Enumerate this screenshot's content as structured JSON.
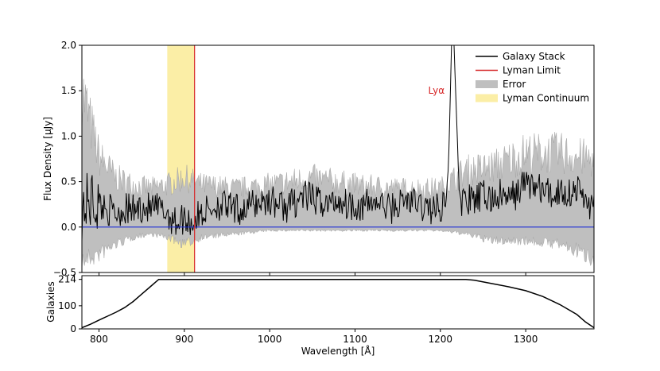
{
  "chart_data": [
    {
      "type": "line",
      "xlim": [
        780,
        1380
      ],
      "ylim": [
        -0.5,
        2.0
      ],
      "ylabel": "Flux Density [μJy]",
      "xlabel": "",
      "yticks": [
        -0.5,
        0.0,
        0.5,
        1.0,
        1.5,
        2.0
      ],
      "ytick_labels": [
        "−0.5",
        "0.0",
        "0.5",
        "1.0",
        "1.5",
        "2.0"
      ],
      "grid": false,
      "legend_position": "top-right",
      "legend": [
        {
          "label": "Galaxy Stack",
          "kind": "line",
          "color": "#000000"
        },
        {
          "label": "Lyman Limit",
          "kind": "line",
          "color": "#d62728"
        },
        {
          "label": "Error",
          "kind": "patch",
          "color": "#bfbfbf"
        },
        {
          "label": "Lyman Continuum",
          "kind": "patch",
          "color": "#fbeea6"
        }
      ],
      "lyman_limit": {
        "x": 912,
        "color": "#d62728"
      },
      "lyman_continuum": {
        "x_range": [
          880,
          912
        ],
        "color": "#fbeea6"
      },
      "zero_line": {
        "y": 0.0,
        "color": "#1f2ed6"
      },
      "annotations": [
        {
          "text": "Lyα",
          "x": 1198,
          "y": 1.5,
          "color": "#d62728"
        }
      ],
      "series": [
        {
          "name": "Galaxy Stack",
          "color": "#000000",
          "x": [
            780,
            790,
            800,
            810,
            820,
            830,
            840,
            850,
            860,
            870,
            880,
            890,
            900,
            910,
            920,
            930,
            940,
            950,
            960,
            970,
            980,
            990,
            1000,
            1010,
            1020,
            1030,
            1040,
            1050,
            1060,
            1070,
            1080,
            1090,
            1100,
            1110,
            1120,
            1130,
            1140,
            1150,
            1160,
            1170,
            1180,
            1190,
            1200,
            1205,
            1210,
            1213,
            1216,
            1219,
            1222,
            1225,
            1230,
            1240,
            1250,
            1260,
            1270,
            1280,
            1290,
            1300,
            1310,
            1320,
            1330,
            1340,
            1350,
            1360,
            1370,
            1380
          ],
          "y": [
            0.2,
            0.3,
            0.25,
            0.2,
            0.15,
            0.2,
            0.18,
            0.22,
            0.2,
            0.2,
            0.15,
            0.05,
            0.1,
            0.05,
            0.15,
            0.2,
            0.25,
            0.22,
            0.18,
            0.2,
            0.25,
            0.28,
            0.3,
            0.25,
            0.22,
            0.28,
            0.35,
            0.3,
            0.28,
            0.25,
            0.3,
            0.26,
            0.25,
            0.22,
            0.28,
            0.25,
            0.2,
            0.24,
            0.3,
            0.26,
            0.22,
            0.2,
            0.2,
            0.3,
            0.8,
            2.0,
            2.0,
            1.2,
            0.4,
            0.25,
            0.3,
            0.28,
            0.35,
            0.3,
            0.35,
            0.3,
            0.38,
            0.5,
            0.45,
            0.4,
            0.35,
            0.4,
            0.38,
            0.42,
            0.3,
            0.2
          ]
        },
        {
          "name": "Error",
          "color": "#bfbfbf",
          "x": [
            780,
            800,
            820,
            840,
            860,
            880,
            900,
            920,
            960,
            1000,
            1050,
            1100,
            1150,
            1200,
            1230,
            1260,
            1300,
            1340,
            1380
          ],
          "y_low": [
            -0.5,
            -0.4,
            -0.25,
            -0.15,
            -0.1,
            -0.15,
            -0.25,
            -0.15,
            -0.1,
            -0.05,
            -0.05,
            -0.05,
            -0.05,
            -0.05,
            -0.1,
            -0.2,
            -0.2,
            -0.25,
            -0.45
          ],
          "y_high": [
            1.95,
            1.0,
            0.7,
            0.6,
            0.55,
            0.6,
            0.7,
            0.6,
            0.55,
            0.6,
            0.7,
            0.6,
            0.55,
            0.55,
            0.8,
            0.85,
            1.05,
            1.05,
            0.95
          ]
        }
      ]
    },
    {
      "type": "line",
      "xlim": [
        780,
        1380
      ],
      "ylim": [
        0,
        230
      ],
      "xlabel": "Wavelength [Å]",
      "ylabel": "Galaxies",
      "xticks": [
        800,
        900,
        1000,
        1100,
        1200,
        1300
      ],
      "xtick_labels": [
        "800",
        "900",
        "1000",
        "1100",
        "1200",
        "1300"
      ],
      "yticks": [
        0,
        100,
        214
      ],
      "ytick_labels": [
        "0",
        "100",
        "214"
      ],
      "grid": false,
      "series": [
        {
          "color": "#000000",
          "x": [
            780,
            790,
            800,
            810,
            820,
            830,
            840,
            850,
            860,
            870,
            1230,
            1240,
            1260,
            1280,
            1300,
            1320,
            1340,
            1360,
            1370,
            1380
          ],
          "y": [
            5,
            20,
            38,
            55,
            72,
            92,
            118,
            150,
            182,
            214,
            214,
            210,
            196,
            182,
            165,
            140,
            105,
            62,
            30,
            5
          ]
        }
      ]
    }
  ]
}
